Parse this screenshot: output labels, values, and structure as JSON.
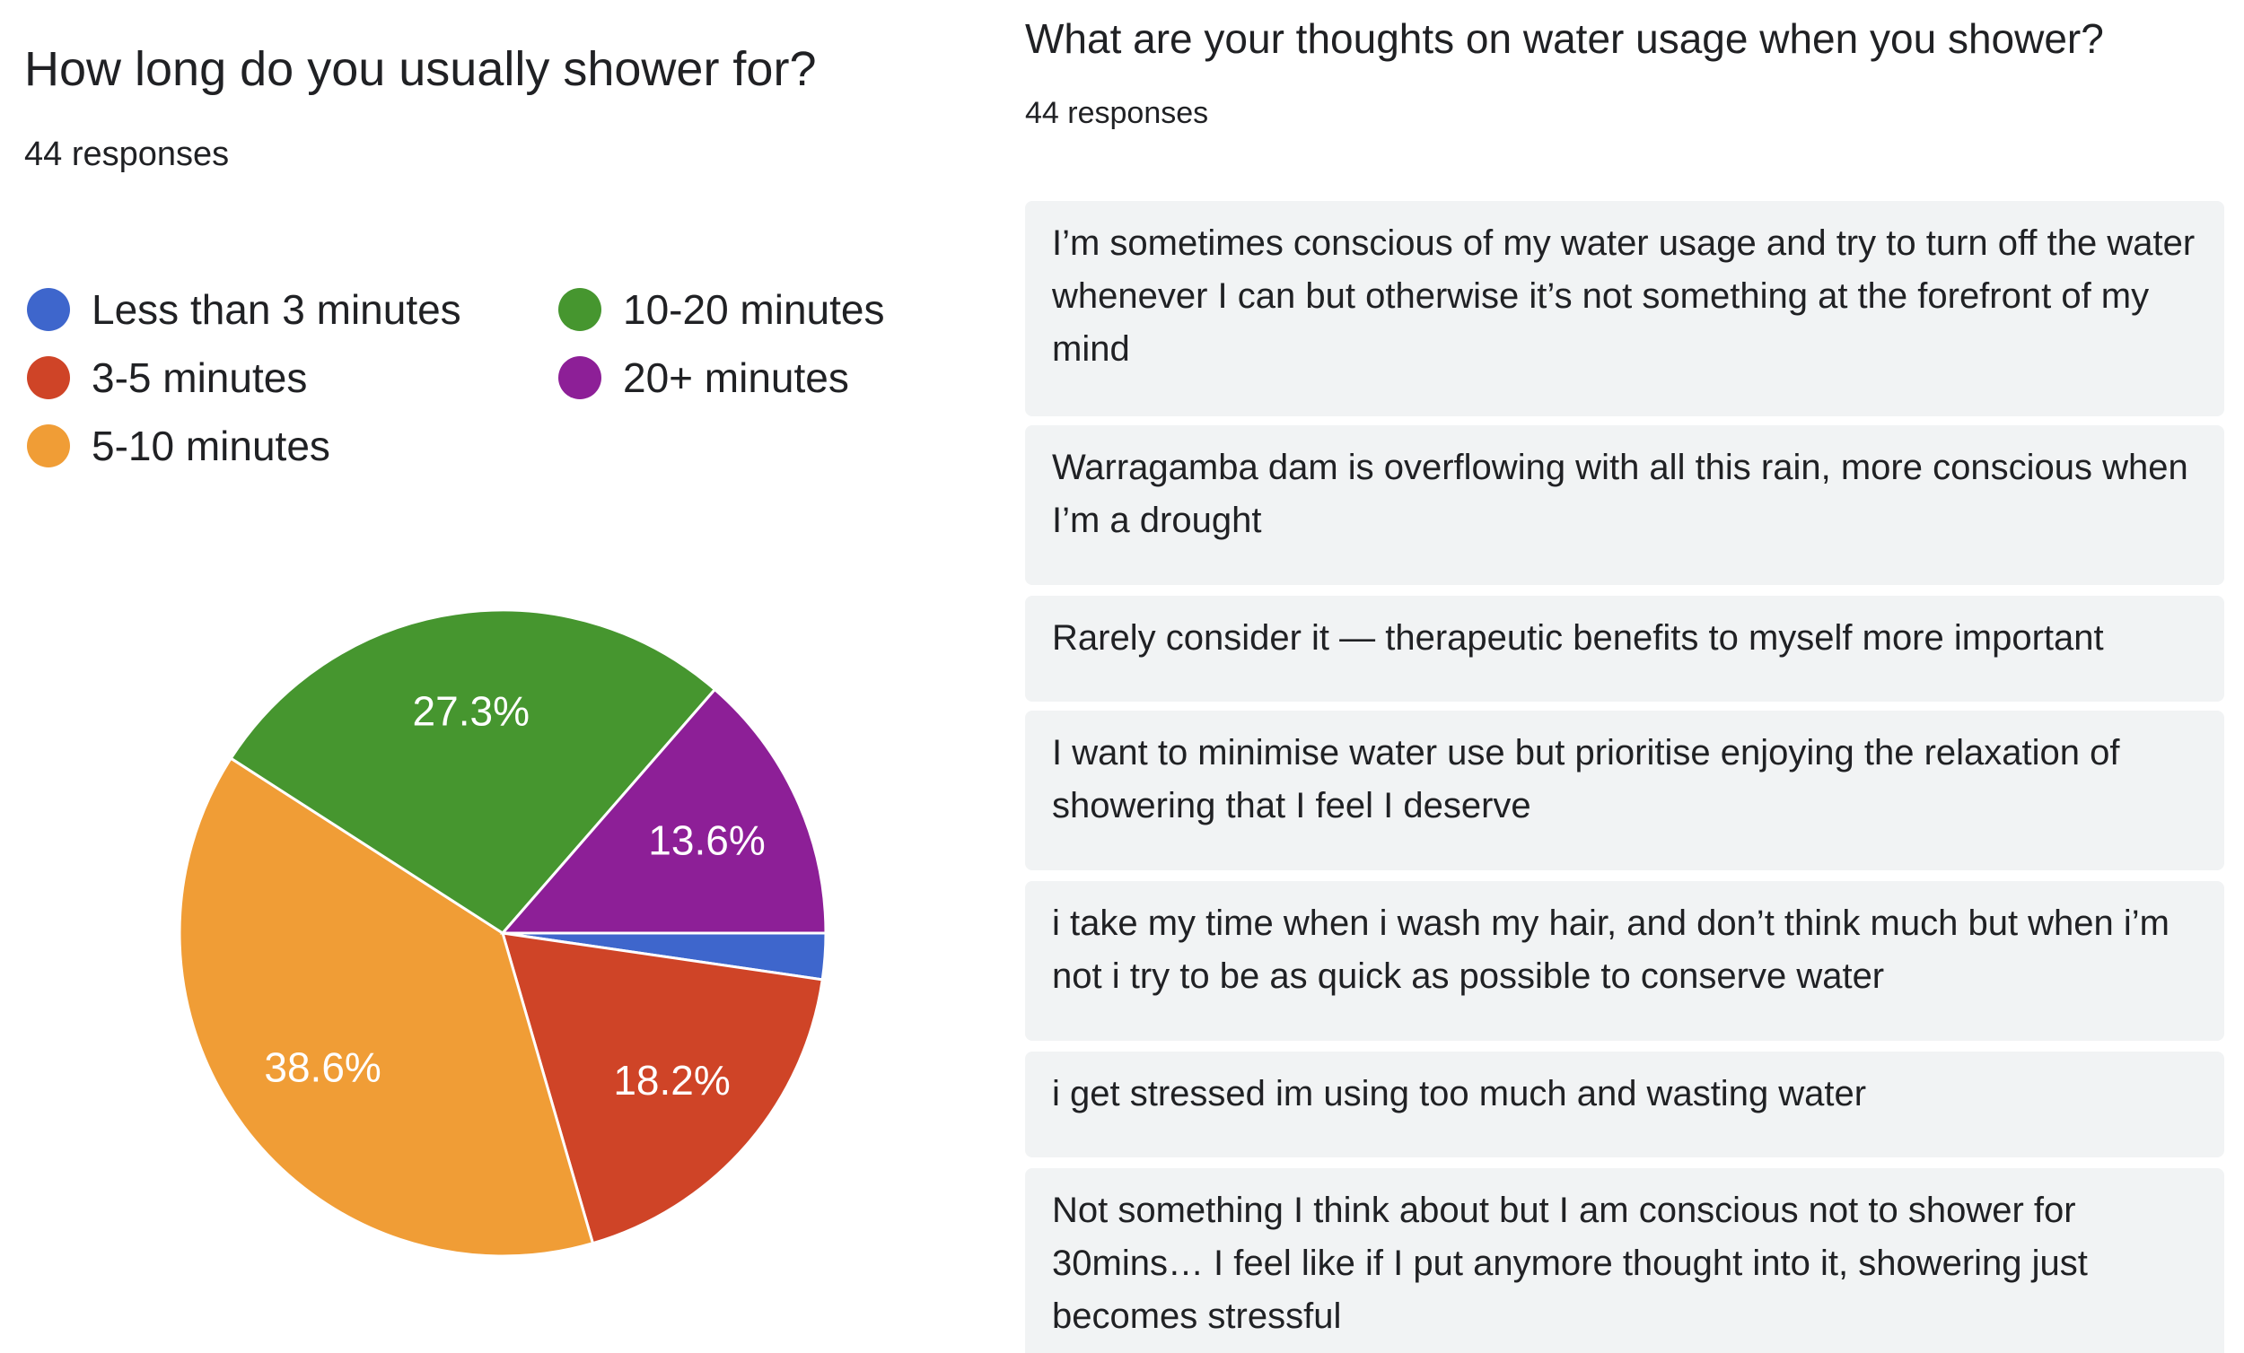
{
  "left": {
    "question": "How long do you usually shower for?",
    "responses_count": "44 responses"
  },
  "right": {
    "question": "What are your thoughts on water usage when you shower?",
    "responses_count": "44 responses",
    "answers": [
      "I’m sometimes conscious of my water usage and try to turn off the water whenever I can but otherwise it’s not something at the forefront of my mind",
      "Warragamba dam is overflowing with all this rain, more conscious when I’m a drought",
      "Rarely consider it — therapeutic benefits to myself more important",
      "I want to minimise water use but prioritise enjoying the relaxation of showering that I feel I deserve",
      "i take my time when i wash my hair, and don’t think much but when i’m not i try to be as quick as possible to conserve water",
      "i get stressed im using too much and wasting water",
      "Not something I think about but I am conscious not to shower for 30mins… I feel like if I put anymore thought into it, showering just becomes stressful"
    ]
  },
  "chart_data": {
    "type": "pie",
    "total_responses": 44,
    "categories": [
      "Less than 3 minutes",
      "3-5 minutes",
      "5-10 minutes",
      "10-20 minutes",
      "20+ minutes"
    ],
    "values": [
      2.3,
      18.2,
      38.6,
      27.3,
      13.6
    ],
    "labels": [
      "",
      "18.2%",
      "38.6%",
      "27.3%",
      "13.6%"
    ],
    "colors": [
      "#3e66cc",
      "#cf4427",
      "#f09d36",
      "#46962f",
      "#8d1f97"
    ],
    "legend_position": "top"
  }
}
